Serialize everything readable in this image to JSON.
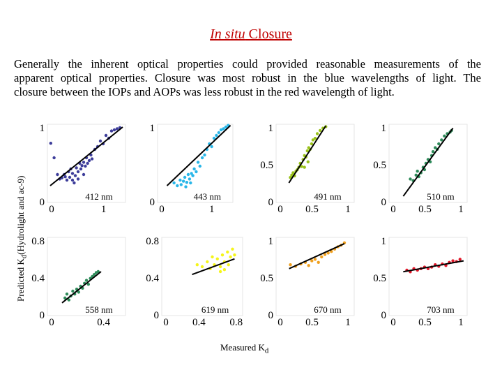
{
  "slide": {
    "title_italic": "In situ",
    "title_rest": " Closure",
    "paragraph_lines": [
      "Generally the inherent optical properties could provided reasonable measurements of the",
      "apparent optical properties.  Closure was most robust in the blue wavelengths of light.  The",
      "closure between the IOPs and AOPs was less robust in the red wavelength of light."
    ],
    "y_axis_label_main": "Predicted K",
    "y_axis_label_sub": "d",
    "y_axis_label_rest": "(Hydrolight and ac-9)",
    "x_axis_label_main": "Measured K",
    "x_axis_label_sub": "d",
    "colors": {
      "title": "#c00000",
      "c412": "#3d3d9a",
      "c443": "#29b6e8",
      "c491": "#99c21a",
      "c510": "#2e8b5a",
      "c558": "#2e8b5a",
      "c619": "#f5f51a",
      "c670": "#f0a01e",
      "c703": "#e0182a"
    }
  },
  "chart_data": [
    {
      "type": "scatter",
      "title": "412 nm",
      "color_key": "c412",
      "xticks": [
        "0",
        "1"
      ],
      "yticks": [
        "0",
        "1"
      ],
      "xlim": [
        0,
        1.4
      ],
      "ylim": [
        0,
        1.4
      ],
      "fit": [
        [
          0.05,
          0.3
        ],
        [
          1.35,
          1.35
        ]
      ],
      "points": [
        [
          0.06,
          1.06
        ],
        [
          0.12,
          0.8
        ],
        [
          0.18,
          0.5
        ],
        [
          0.22,
          0.42
        ],
        [
          0.26,
          0.44
        ],
        [
          0.3,
          0.5
        ],
        [
          0.32,
          0.46
        ],
        [
          0.35,
          0.4
        ],
        [
          0.38,
          0.55
        ],
        [
          0.4,
          0.45
        ],
        [
          0.42,
          0.6
        ],
        [
          0.45,
          0.52
        ],
        [
          0.48,
          0.35
        ],
        [
          0.5,
          0.48
        ],
        [
          0.52,
          0.62
        ],
        [
          0.55,
          0.55
        ],
        [
          0.58,
          0.7
        ],
        [
          0.6,
          0.6
        ],
        [
          0.62,
          0.66
        ],
        [
          0.65,
          0.72
        ],
        [
          0.68,
          0.65
        ],
        [
          0.7,
          0.8
        ],
        [
          0.72,
          0.7
        ],
        [
          0.75,
          0.75
        ],
        [
          0.78,
          0.85
        ],
        [
          0.8,
          0.78
        ],
        [
          0.85,
          0.95
        ],
        [
          0.9,
          1.0
        ],
        [
          0.95,
          1.1
        ],
        [
          1.0,
          1.05
        ],
        [
          1.05,
          1.2
        ],
        [
          1.1,
          1.15
        ],
        [
          1.15,
          1.28
        ],
        [
          1.2,
          1.3
        ],
        [
          1.25,
          1.32
        ],
        [
          1.3,
          1.34
        ],
        [
          0.45,
          0.4
        ],
        [
          0.55,
          0.42
        ],
        [
          0.65,
          0.5
        ]
      ]
    },
    {
      "type": "scatter",
      "title": "443 nm",
      "color_key": "c443",
      "xticks": [
        "0",
        "1"
      ],
      "yticks": [
        "0",
        "1"
      ],
      "xlim": [
        0,
        1.6
      ],
      "ylim": [
        0,
        1.4
      ],
      "fit": [
        [
          0.2,
          0.3
        ],
        [
          1.55,
          1.38
        ]
      ],
      "points": [
        [
          0.35,
          0.35
        ],
        [
          0.42,
          0.3
        ],
        [
          0.48,
          0.4
        ],
        [
          0.5,
          0.32
        ],
        [
          0.55,
          0.38
        ],
        [
          0.58,
          0.45
        ],
        [
          0.62,
          0.36
        ],
        [
          0.65,
          0.5
        ],
        [
          0.68,
          0.42
        ],
        [
          0.72,
          0.52
        ],
        [
          0.75,
          0.48
        ],
        [
          0.78,
          0.6
        ],
        [
          0.82,
          0.55
        ],
        [
          0.86,
          0.72
        ],
        [
          0.9,
          0.65
        ],
        [
          0.95,
          0.8
        ],
        [
          1.0,
          0.85
        ],
        [
          1.05,
          0.95
        ],
        [
          1.1,
          1.05
        ],
        [
          1.15,
          1.0
        ],
        [
          1.2,
          1.15
        ],
        [
          1.25,
          1.2
        ],
        [
          1.3,
          1.25
        ],
        [
          1.35,
          1.3
        ],
        [
          1.4,
          1.32
        ],
        [
          1.45,
          1.35
        ],
        [
          1.5,
          1.38
        ],
        [
          0.6,
          0.28
        ],
        [
          0.7,
          0.35
        ]
      ]
    },
    {
      "type": "scatter",
      "title": "491 nm",
      "color_key": "c491",
      "xticks": [
        "0",
        "0.5",
        "1"
      ],
      "yticks": [
        "0",
        "0.5",
        "1"
      ],
      "xlim": [
        0,
        1.1
      ],
      "ylim": [
        0,
        1.0
      ],
      "fit": [
        [
          0.18,
          0.25
        ],
        [
          0.7,
          0.98
        ]
      ],
      "points": [
        [
          0.2,
          0.32
        ],
        [
          0.22,
          0.35
        ],
        [
          0.24,
          0.38
        ],
        [
          0.26,
          0.34
        ],
        [
          0.28,
          0.4
        ],
        [
          0.3,
          0.42
        ],
        [
          0.32,
          0.45
        ],
        [
          0.34,
          0.5
        ],
        [
          0.36,
          0.46
        ],
        [
          0.38,
          0.55
        ],
        [
          0.4,
          0.6
        ],
        [
          0.42,
          0.58
        ],
        [
          0.44,
          0.66
        ],
        [
          0.46,
          0.7
        ],
        [
          0.48,
          0.68
        ],
        [
          0.5,
          0.75
        ],
        [
          0.52,
          0.8
        ],
        [
          0.55,
          0.82
        ],
        [
          0.58,
          0.88
        ],
        [
          0.62,
          0.92
        ],
        [
          0.66,
          0.95
        ],
        [
          0.7,
          0.97
        ],
        [
          0.4,
          0.45
        ],
        [
          0.45,
          0.52
        ]
      ]
    },
    {
      "type": "scatter",
      "title": "510 nm",
      "color_key": "c510",
      "xticks": [
        "0",
        "0.5",
        "1"
      ],
      "yticks": [
        "0",
        "0.5",
        "1"
      ],
      "xlim": [
        0,
        1.1
      ],
      "ylim": [
        0,
        1.0
      ],
      "fit": [
        [
          0.2,
          0.08
        ],
        [
          0.9,
          0.95
        ]
      ],
      "points": [
        [
          0.3,
          0.3
        ],
        [
          0.34,
          0.28
        ],
        [
          0.38,
          0.35
        ],
        [
          0.4,
          0.4
        ],
        [
          0.42,
          0.33
        ],
        [
          0.45,
          0.38
        ],
        [
          0.48,
          0.45
        ],
        [
          0.5,
          0.42
        ],
        [
          0.52,
          0.5
        ],
        [
          0.55,
          0.55
        ],
        [
          0.58,
          0.52
        ],
        [
          0.6,
          0.6
        ],
        [
          0.62,
          0.65
        ],
        [
          0.65,
          0.7
        ],
        [
          0.68,
          0.68
        ],
        [
          0.7,
          0.75
        ],
        [
          0.74,
          0.8
        ],
        [
          0.78,
          0.85
        ],
        [
          0.82,
          0.88
        ],
        [
          0.86,
          0.9
        ],
        [
          0.88,
          0.92
        ]
      ]
    },
    {
      "type": "scatter",
      "title": "558 nm",
      "color_key": "c558",
      "xticks": [
        "0",
        "0.4"
      ],
      "yticks": [
        "0",
        "0.4",
        "0.8"
      ],
      "xlim": [
        0,
        0.8
      ],
      "ylim": [
        0,
        0.8
      ],
      "fit": [
        [
          0.15,
          0.13
        ],
        [
          0.55,
          0.45
        ]
      ],
      "points": [
        [
          0.18,
          0.18
        ],
        [
          0.2,
          0.22
        ],
        [
          0.22,
          0.16
        ],
        [
          0.24,
          0.2
        ],
        [
          0.26,
          0.25
        ],
        [
          0.28,
          0.22
        ],
        [
          0.3,
          0.27
        ],
        [
          0.32,
          0.24
        ],
        [
          0.34,
          0.3
        ],
        [
          0.36,
          0.28
        ],
        [
          0.38,
          0.33
        ],
        [
          0.4,
          0.36
        ],
        [
          0.42,
          0.32
        ],
        [
          0.44,
          0.38
        ],
        [
          0.46,
          0.4
        ],
        [
          0.48,
          0.42
        ],
        [
          0.5,
          0.44
        ],
        [
          0.52,
          0.45
        ]
      ]
    },
    {
      "type": "scatter",
      "title": "619 nm",
      "color_key": "c619",
      "xticks": [
        "0",
        "0.4",
        "0.8"
      ],
      "yticks": [
        "0",
        "0.4",
        "0.8"
      ],
      "xlim": [
        0,
        0.8
      ],
      "ylim": [
        0,
        0.8
      ],
      "fit": [
        [
          0.3,
          0.42
        ],
        [
          0.72,
          0.58
        ]
      ],
      "points": [
        [
          0.35,
          0.52
        ],
        [
          0.4,
          0.5
        ],
        [
          0.45,
          0.55
        ],
        [
          0.48,
          0.48
        ],
        [
          0.5,
          0.6
        ],
        [
          0.52,
          0.52
        ],
        [
          0.55,
          0.58
        ],
        [
          0.58,
          0.5
        ],
        [
          0.6,
          0.62
        ],
        [
          0.62,
          0.55
        ],
        [
          0.65,
          0.65
        ],
        [
          0.68,
          0.6
        ],
        [
          0.7,
          0.68
        ],
        [
          0.72,
          0.62
        ],
        [
          0.58,
          0.45
        ],
        [
          0.62,
          0.47
        ],
        [
          0.66,
          0.52
        ]
      ]
    },
    {
      "type": "scatter",
      "title": "670 nm",
      "color_key": "c670",
      "xticks": [
        "0",
        "0.5",
        "1"
      ],
      "yticks": [
        "0",
        "0.5",
        "1"
      ],
      "xlim": [
        0,
        1.2
      ],
      "ylim": [
        0,
        1.0
      ],
      "fit": [
        [
          0.2,
          0.6
        ],
        [
          1.05,
          0.92
        ]
      ],
      "points": [
        [
          0.22,
          0.65
        ],
        [
          0.3,
          0.63
        ],
        [
          0.38,
          0.66
        ],
        [
          0.45,
          0.68
        ],
        [
          0.5,
          0.64
        ],
        [
          0.55,
          0.7
        ],
        [
          0.6,
          0.72
        ],
        [
          0.65,
          0.68
        ],
        [
          0.7,
          0.75
        ],
        [
          0.75,
          0.78
        ],
        [
          0.8,
          0.8
        ],
        [
          0.85,
          0.82
        ],
        [
          0.9,
          0.85
        ],
        [
          0.95,
          0.88
        ],
        [
          1.0,
          0.9
        ],
        [
          1.05,
          0.93
        ]
      ]
    },
    {
      "type": "scatter",
      "title": "703 nm",
      "color_key": "c703",
      "xticks": [
        "0",
        "0.5",
        "1"
      ],
      "yticks": [
        "0",
        "0.5",
        "1"
      ],
      "xlim": [
        0,
        1.1
      ],
      "ylim": [
        0,
        1.0
      ],
      "fit": [
        [
          0.2,
          0.56
        ],
        [
          1.05,
          0.7
        ]
      ],
      "points": [
        [
          0.25,
          0.58
        ],
        [
          0.3,
          0.56
        ],
        [
          0.35,
          0.6
        ],
        [
          0.4,
          0.58
        ],
        [
          0.45,
          0.6
        ],
        [
          0.5,
          0.62
        ],
        [
          0.55,
          0.6
        ],
        [
          0.6,
          0.62
        ],
        [
          0.65,
          0.65
        ],
        [
          0.7,
          0.63
        ],
        [
          0.75,
          0.66
        ],
        [
          0.8,
          0.64
        ],
        [
          0.85,
          0.68
        ],
        [
          0.9,
          0.7
        ],
        [
          0.95,
          0.69
        ],
        [
          1.0,
          0.72
        ]
      ]
    }
  ]
}
